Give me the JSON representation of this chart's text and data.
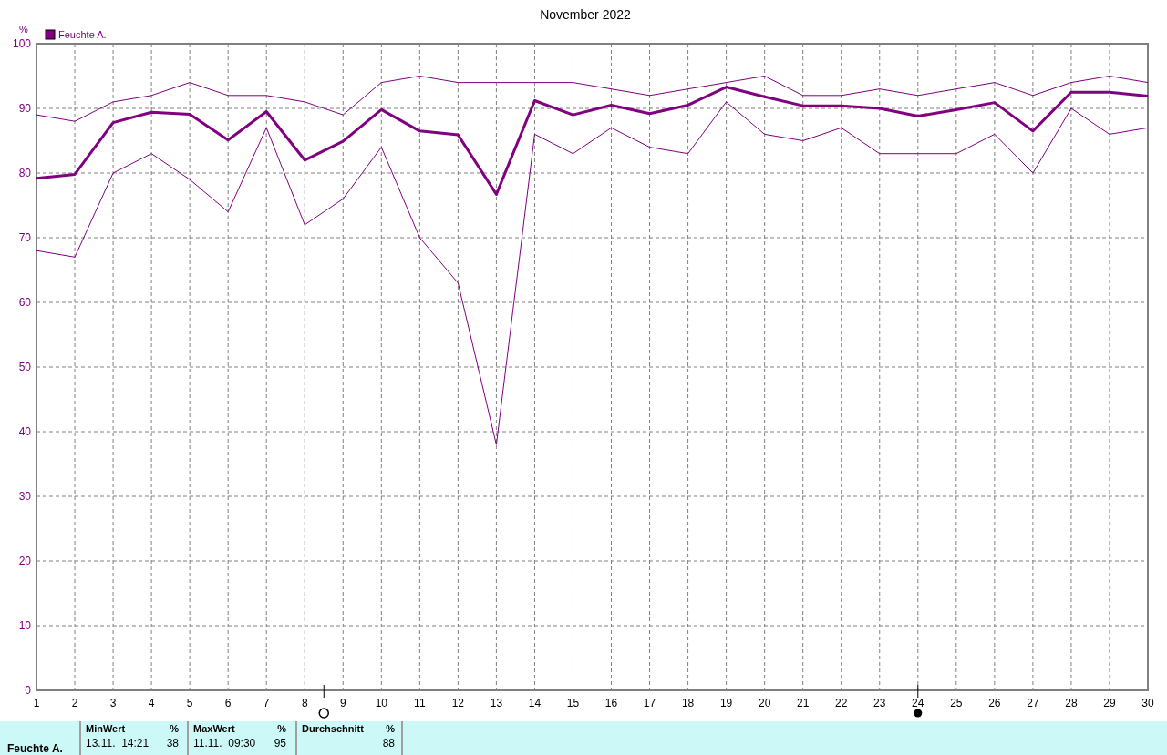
{
  "chart_data": {
    "type": "line",
    "title": "November 2022",
    "ylabel": "%",
    "x": [
      1,
      2,
      3,
      4,
      5,
      6,
      7,
      8,
      9,
      10,
      11,
      12,
      13,
      14,
      15,
      16,
      17,
      18,
      19,
      20,
      21,
      22,
      23,
      24,
      25,
      26,
      27,
      28,
      29,
      30
    ],
    "xlim": [
      1,
      30
    ],
    "xticks": [
      1,
      2,
      3,
      4,
      5,
      6,
      7,
      8,
      9,
      10,
      11,
      12,
      13,
      14,
      15,
      16,
      17,
      18,
      19,
      20,
      21,
      22,
      23,
      24,
      25,
      26,
      27,
      28,
      29,
      30
    ],
    "ylim": [
      0,
      100
    ],
    "yticks": [
      0,
      10,
      20,
      30,
      40,
      50,
      60,
      70,
      80,
      90,
      100
    ],
    "series": [
      {
        "color": "#800080",
        "values": [
          89,
          88,
          91,
          92,
          94,
          92,
          92,
          91,
          89,
          94,
          95,
          94,
          94,
          94,
          94,
          93,
          92,
          93,
          94,
          95,
          92,
          92,
          93,
          92,
          93,
          94,
          92,
          94,
          95,
          94
        ]
      },
      {
        "name": "Feuchte A.",
        "color": "#800080",
        "values": [
          79.2,
          79.8,
          87.8,
          89.4,
          89.1,
          85.1,
          89.5,
          82.0,
          84.9,
          89.8,
          86.5,
          85.9,
          76.7,
          91.2,
          89.0,
          90.5,
          89.2,
          90.5,
          93.3,
          91.8,
          90.4,
          90.4,
          90.0,
          88.8,
          89.8,
          90.9,
          86.5,
          92.5,
          92.5,
          91.9
        ]
      },
      {
        "color": "#800080",
        "values": [
          68,
          67,
          80,
          83,
          79,
          74,
          87,
          72,
          76,
          84,
          70,
          63,
          38,
          86,
          83,
          87,
          84,
          83,
          91,
          86,
          85,
          87,
          83,
          83,
          83,
          86,
          80,
          90,
          86,
          87
        ]
      }
    ],
    "grid": true,
    "legend": "top left",
    "marker": "none",
    "line_style": "solid",
    "annotations": [
      "Feuchte A.",
      "MinWert",
      "%",
      "13.11.  14:21",
      "38",
      "MaxWert",
      "%",
      "11.11.  09:30",
      "95",
      "Durchschnitt",
      "%",
      "88"
    ]
  }
}
